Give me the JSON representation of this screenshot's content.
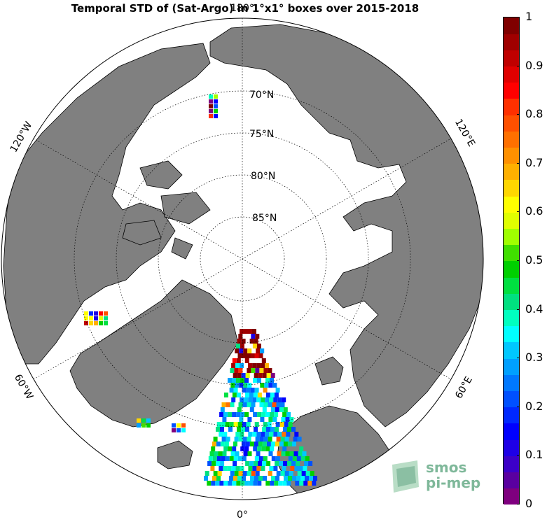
{
  "title": "Temporal STD of (Sat-Argo) in 1°x1° boxes over 2015-2018",
  "map": {
    "projection": "north-polar-stereographic",
    "lon_labels": {
      "top": "180°",
      "bottom": "0°",
      "left_upper": "120°W",
      "left_lower": "60°W",
      "right_upper": "120°E",
      "right_lower": "60°E"
    },
    "lat_labels": [
      "70°N",
      "75°N",
      "80°N",
      "85°N"
    ],
    "land_color": "#808080",
    "ocean_color": "#ffffff"
  },
  "colorbar": {
    "min": 0,
    "max": 1,
    "ticks": [
      "0",
      "0.1",
      "0.2",
      "0.3",
      "0.4",
      "0.5",
      "0.6",
      "0.7",
      "0.8",
      "0.9",
      "1"
    ],
    "colors": [
      "#7f007f",
      "#5a00a0",
      "#3c00c8",
      "#1e00e6",
      "#0000ff",
      "#0028ff",
      "#0050ff",
      "#0078ff",
      "#00a0ff",
      "#00c8ff",
      "#00ffff",
      "#00ffc0",
      "#00e080",
      "#00e040",
      "#00d000",
      "#40e000",
      "#a0ff00",
      "#e0ff00",
      "#ffff00",
      "#ffd700",
      "#ffb000",
      "#ff9000",
      "#ff7000",
      "#ff5000",
      "#ff3000",
      "#ff0000",
      "#e00000",
      "#c00000",
      "#a00000",
      "#800000"
    ]
  },
  "logo": {
    "line1": "smos",
    "line2": "pi-mep"
  }
}
